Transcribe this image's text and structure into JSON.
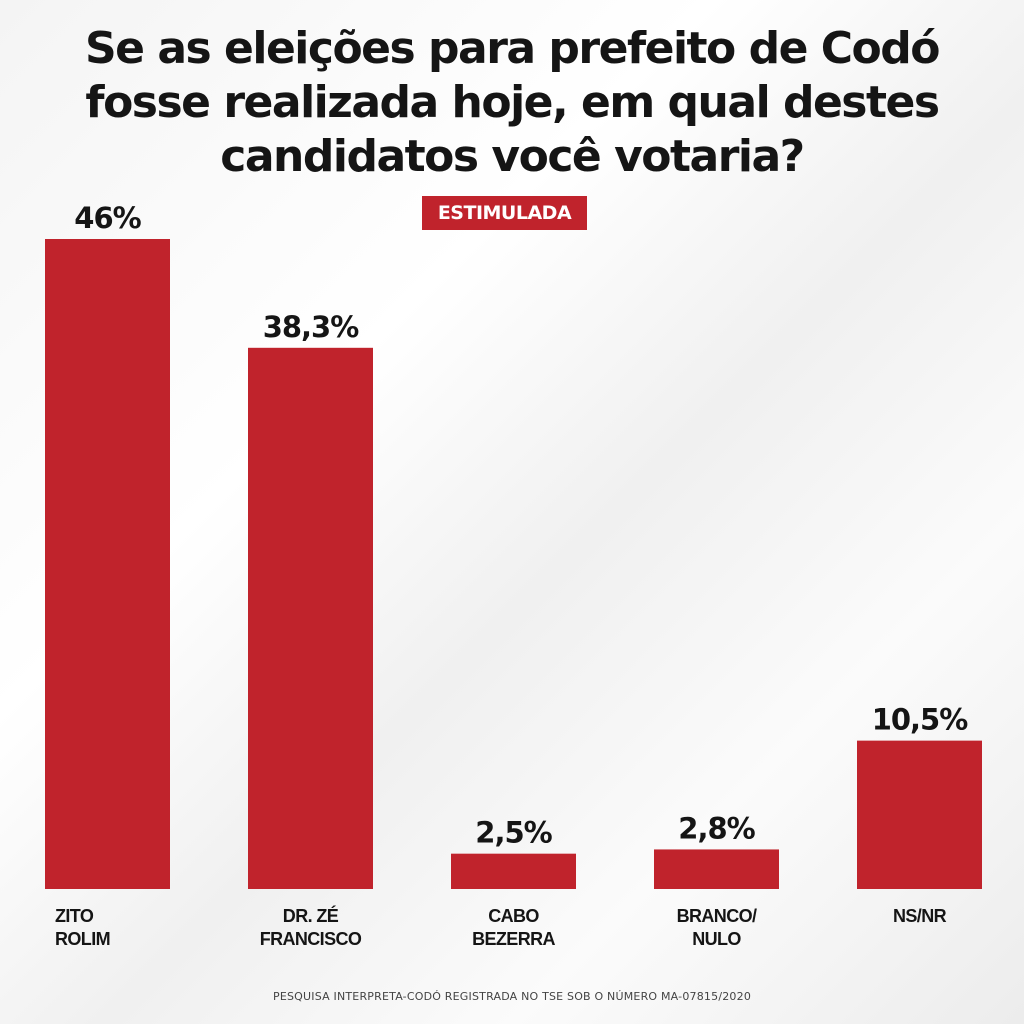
{
  "chart_data": {
    "type": "bar",
    "title_lines": [
      "Se as eleições para prefeito de Codó",
      "fosse realizada hoje, em qual destes",
      "candidatos você votaria?"
    ],
    "subtitle": "ESTIMULADA",
    "categories": [
      [
        "ZITO",
        "ROLIM"
      ],
      [
        "DR. ZÉ",
        "FRANCISCO"
      ],
      [
        "CABO",
        "BEZERRA"
      ],
      [
        "BRANCO/",
        "NULO"
      ],
      [
        "NS/NR"
      ]
    ],
    "values": [
      46,
      38.3,
      2.5,
      2.8,
      10.5
    ],
    "value_labels": [
      "46%",
      "38,3%",
      "2,5%",
      "2,8%",
      "10,5%"
    ],
    "ylim": [
      0,
      46
    ],
    "xlabel": "",
    "ylabel": "",
    "grid": false,
    "legend": "none",
    "bar_color": "#c0232c"
  },
  "footer": "PESQUISA INTERPRETA-CODÓ REGISTRADA NO TSE SOB O NÚMERO MA-07815/2020"
}
